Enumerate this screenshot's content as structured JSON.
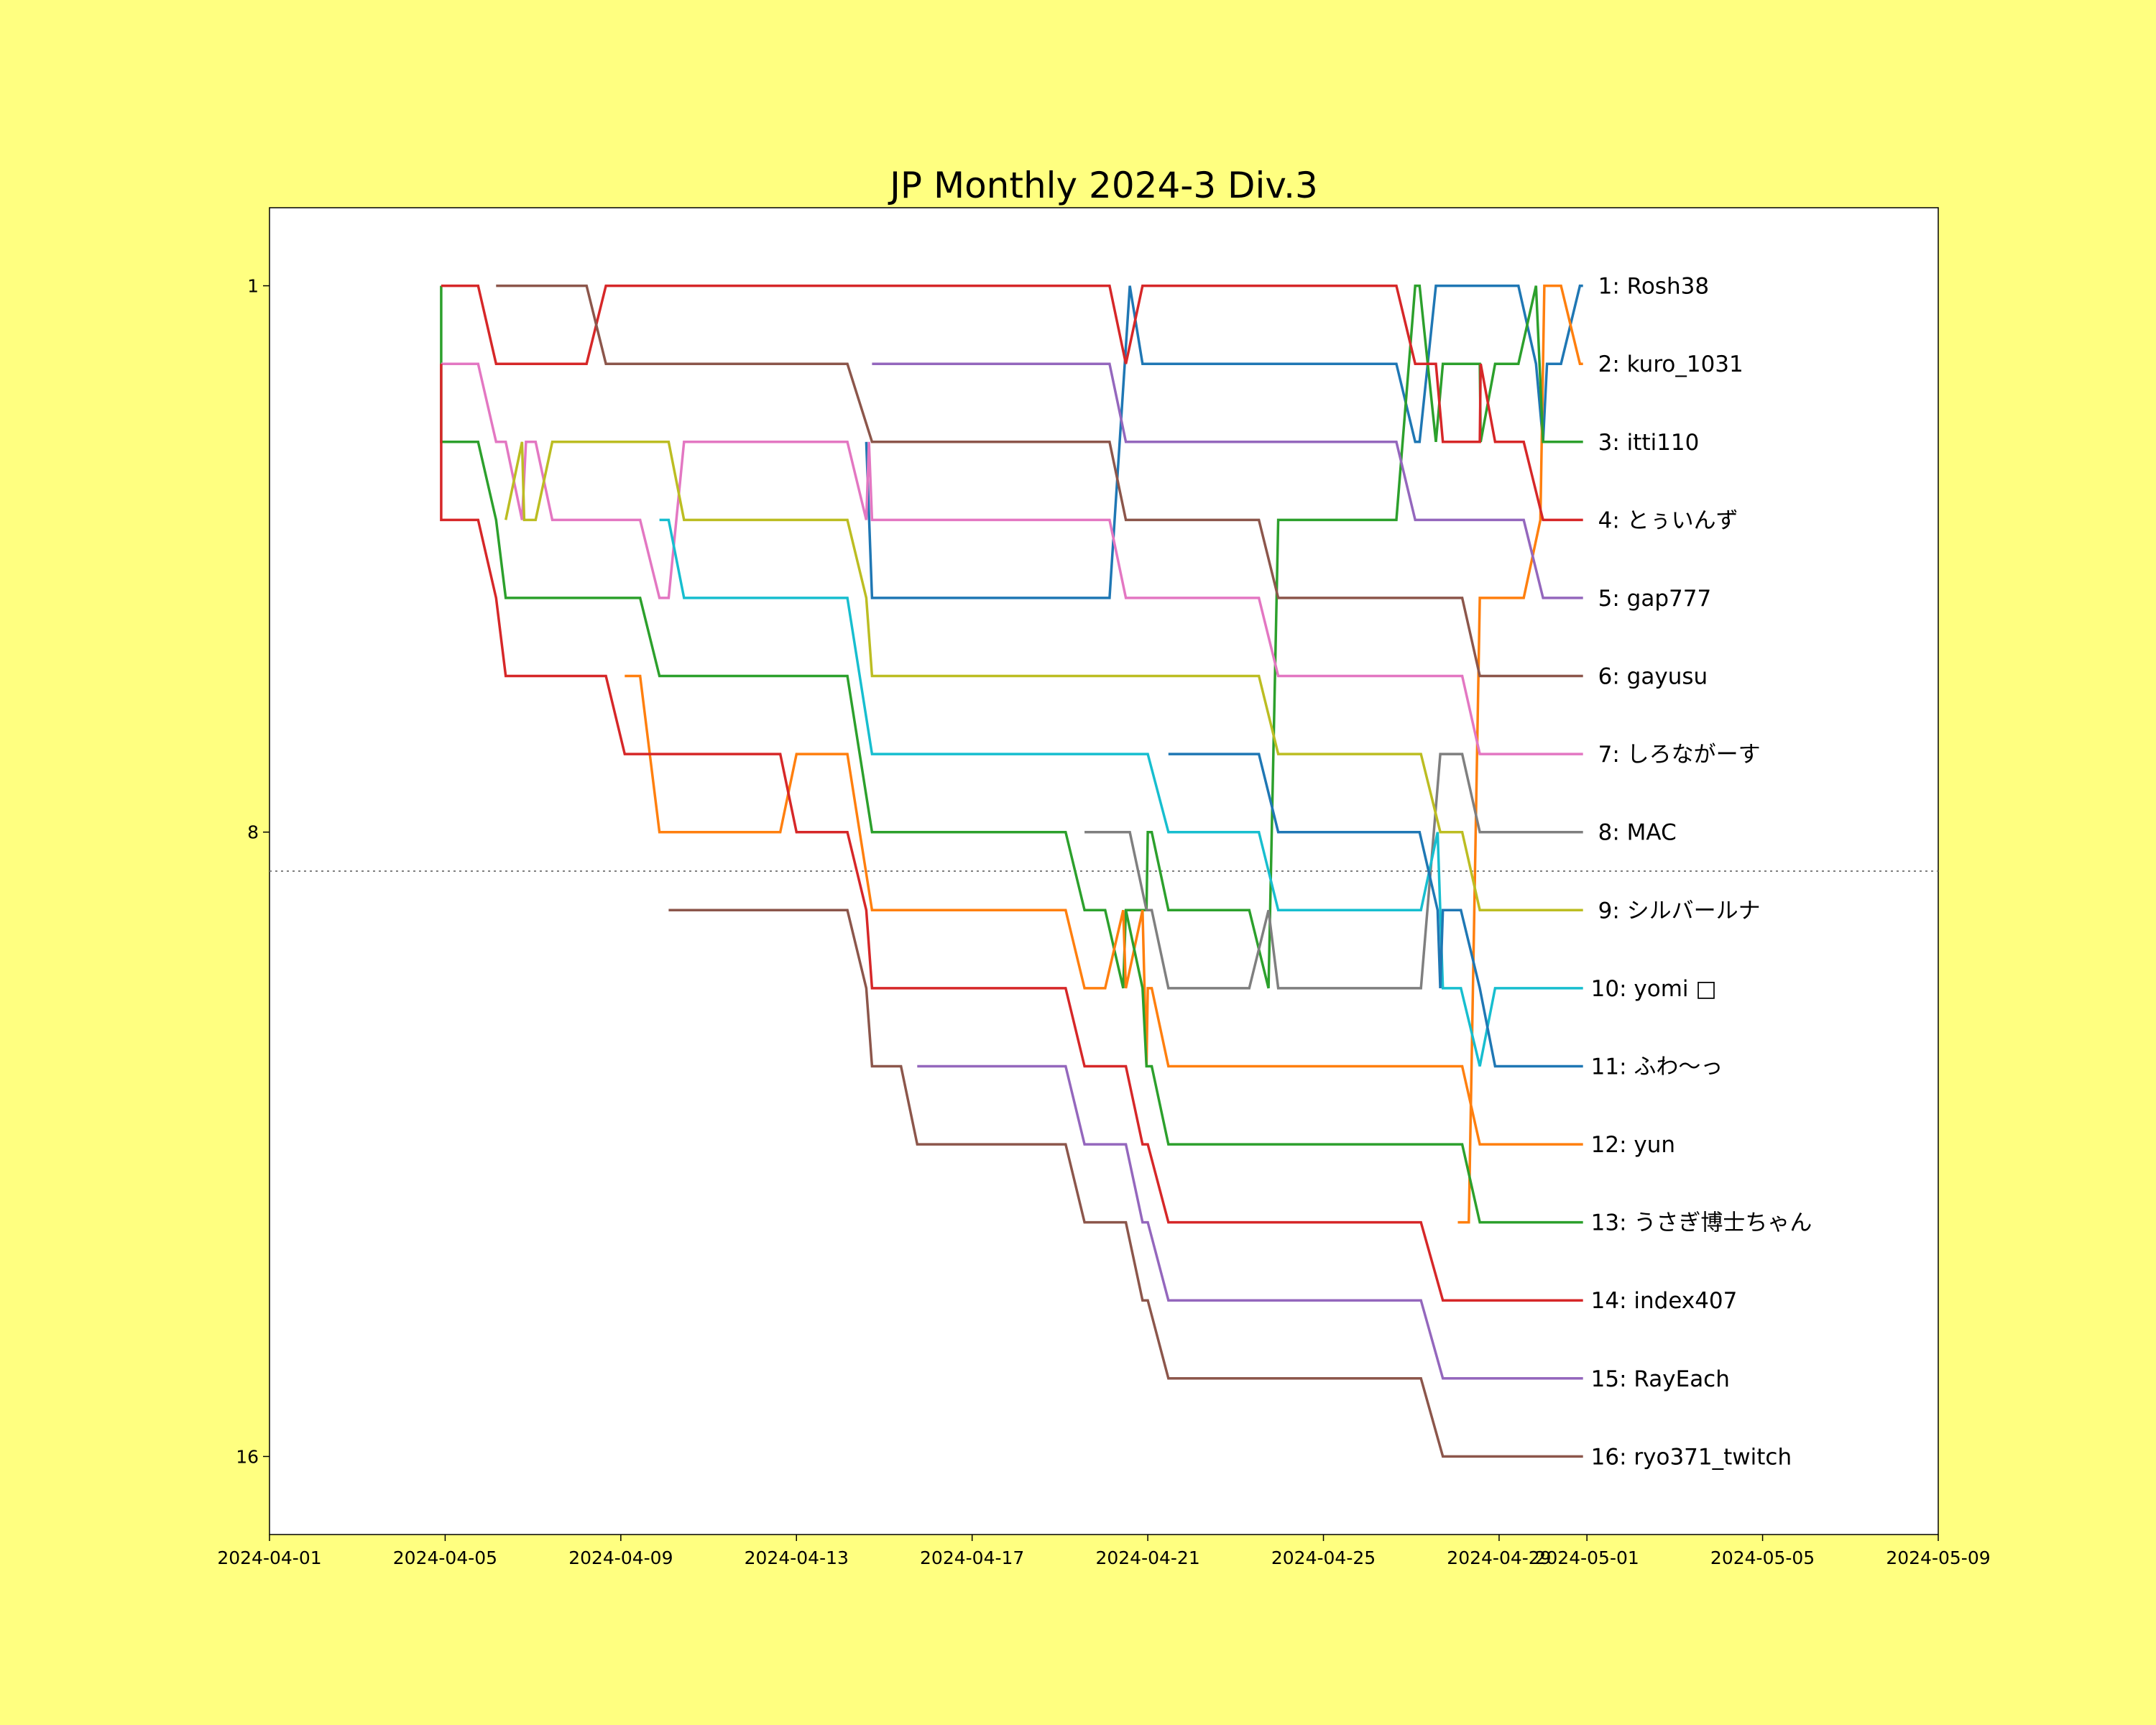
{
  "chart_data": {
    "type": "line",
    "title": "JP Monthly 2024-3 Div.3",
    "xlabel": "",
    "ylabel": "",
    "x_unit": "days since 2024-04-01",
    "xlim": [
      0,
      38
    ],
    "ylim": [
      17,
      0
    ],
    "grid": false,
    "x_ticks": [
      {
        "value": 0,
        "label": "2024-04-01"
      },
      {
        "value": 4,
        "label": "2024-04-05"
      },
      {
        "value": 8,
        "label": "2024-04-09"
      },
      {
        "value": 12,
        "label": "2024-04-13"
      },
      {
        "value": 16,
        "label": "2024-04-17"
      },
      {
        "value": 20,
        "label": "2024-04-21"
      },
      {
        "value": 24,
        "label": "2024-04-25"
      },
      {
        "value": 28,
        "label": "2024-04-29"
      },
      {
        "value": 30,
        "label": "2024-05-01"
      },
      {
        "value": 34,
        "label": "2024-05-05"
      },
      {
        "value": 38,
        "label": "2024-05-09"
      }
    ],
    "y_ticks": [
      {
        "value": 1,
        "label": "1"
      },
      {
        "value": 8,
        "label": "8"
      },
      {
        "value": 16,
        "label": "16"
      }
    ],
    "cutoff_line": {
      "rank": 8.5,
      "style": "dotted",
      "color": "#808080"
    },
    "legend_placement": "right-end-labels",
    "series": [
      {
        "name": "1: Rosh38",
        "color": "#1f77b4",
        "points": [
          [
            13.59,
            3
          ],
          [
            13.72,
            5
          ],
          [
            19.13,
            5
          ],
          [
            19.59,
            1
          ],
          [
            19.88,
            2
          ],
          [
            25.66,
            2
          ],
          [
            26.09,
            3
          ],
          [
            26.19,
            3
          ],
          [
            26.56,
            1
          ],
          [
            28.44,
            1
          ],
          [
            28.84,
            2
          ],
          [
            29.0,
            3
          ],
          [
            29.09,
            2
          ],
          [
            29.41,
            2
          ],
          [
            29.84,
            1
          ],
          [
            29.91,
            1
          ]
        ]
      },
      {
        "name": "2: kuro_1031",
        "color": "#ff7f0e",
        "points": [
          [
            27.06,
            13
          ],
          [
            27.31,
            13
          ],
          [
            27.56,
            5
          ],
          [
            28.56,
            5
          ],
          [
            28.94,
            4
          ],
          [
            29.03,
            1
          ],
          [
            29.41,
            1
          ],
          [
            29.84,
            2
          ],
          [
            29.91,
            2
          ]
        ]
      },
      {
        "name": "3: itti110",
        "color": "#2ca02c",
        "points": [
          [
            3.91,
            1
          ],
          [
            3.91,
            3
          ],
          [
            4.75,
            3
          ],
          [
            5.16,
            4
          ],
          [
            5.38,
            5
          ],
          [
            8.44,
            5
          ],
          [
            8.88,
            6
          ],
          [
            13.16,
            6
          ],
          [
            13.72,
            8
          ],
          [
            18.13,
            8
          ],
          [
            18.56,
            9
          ],
          [
            19.03,
            9
          ],
          [
            19.44,
            10
          ],
          [
            19.5,
            9
          ],
          [
            19.97,
            9
          ],
          [
            20.0,
            8
          ],
          [
            20.09,
            8
          ],
          [
            20.47,
            9
          ],
          [
            22.31,
            9
          ],
          [
            22.75,
            10
          ],
          [
            22.97,
            4
          ],
          [
            25.66,
            4
          ],
          [
            26.09,
            1
          ],
          [
            26.19,
            1
          ],
          [
            26.56,
            3
          ],
          [
            26.72,
            2
          ],
          [
            27.56,
            2
          ],
          [
            27.58,
            3
          ],
          [
            27.91,
            2
          ],
          [
            28.44,
            2
          ],
          [
            28.84,
            1
          ],
          [
            29.0,
            3
          ],
          [
            29.91,
            3
          ]
        ]
      },
      {
        "name": "4: とぅいんず",
        "color": "#d62728",
        "points": [
          [
            3.91,
            1
          ],
          [
            4.75,
            1
          ],
          [
            5.16,
            2
          ],
          [
            7.22,
            2
          ],
          [
            7.66,
            1
          ],
          [
            19.13,
            1
          ],
          [
            19.5,
            2
          ],
          [
            19.88,
            1
          ],
          [
            25.66,
            1
          ],
          [
            26.09,
            2
          ],
          [
            26.56,
            2
          ],
          [
            26.72,
            3
          ],
          [
            27.56,
            3
          ],
          [
            27.58,
            2
          ],
          [
            27.91,
            3
          ],
          [
            28.56,
            3
          ],
          [
            29.0,
            4
          ],
          [
            29.91,
            4
          ]
        ]
      },
      {
        "name": "5: gap777",
        "color": "#9467bd",
        "points": [
          [
            13.72,
            2
          ],
          [
            19.13,
            2
          ],
          [
            19.5,
            3
          ],
          [
            25.66,
            3
          ],
          [
            26.09,
            4
          ],
          [
            28.56,
            4
          ],
          [
            29.0,
            5
          ],
          [
            29.91,
            5
          ]
        ]
      },
      {
        "name": "6: gayusu",
        "color": "#8c564b",
        "points": [
          [
            5.16,
            1
          ],
          [
            7.22,
            1
          ],
          [
            7.66,
            2
          ],
          [
            13.16,
            2
          ],
          [
            13.72,
            3
          ],
          [
            19.13,
            3
          ],
          [
            19.5,
            4
          ],
          [
            22.53,
            4
          ],
          [
            22.97,
            5
          ],
          [
            27.16,
            5
          ],
          [
            27.56,
            6
          ],
          [
            29.91,
            6
          ]
        ]
      },
      {
        "name": "7: しろながーす",
        "color": "#e377c2",
        "points": [
          [
            3.91,
            2
          ],
          [
            4.75,
            2
          ],
          [
            5.16,
            3
          ],
          [
            5.38,
            3
          ],
          [
            5.75,
            4
          ],
          [
            5.84,
            3
          ],
          [
            6.06,
            3
          ],
          [
            6.44,
            4
          ],
          [
            8.44,
            4
          ],
          [
            8.88,
            5
          ],
          [
            9.09,
            5
          ],
          [
            9.44,
            3
          ],
          [
            13.16,
            3
          ],
          [
            13.59,
            4
          ],
          [
            13.65,
            3
          ],
          [
            13.72,
            4
          ],
          [
            19.13,
            4
          ],
          [
            19.5,
            5
          ],
          [
            22.53,
            5
          ],
          [
            22.97,
            6
          ],
          [
            27.16,
            6
          ],
          [
            27.56,
            7
          ],
          [
            29.91,
            7
          ]
        ]
      },
      {
        "name": "8: MAC",
        "color": "#7f7f7f",
        "points": [
          [
            18.56,
            8
          ],
          [
            19.59,
            8
          ],
          [
            19.97,
            9
          ],
          [
            20.09,
            9
          ],
          [
            20.47,
            10
          ],
          [
            22.31,
            10
          ],
          [
            22.75,
            9
          ],
          [
            22.97,
            10
          ],
          [
            26.22,
            10
          ],
          [
            26.66,
            7
          ],
          [
            27.16,
            7
          ],
          [
            27.56,
            8
          ],
          [
            29.91,
            8
          ]
        ]
      },
      {
        "name": "9: シルバールナ",
        "color": "#bcbd22",
        "points": [
          [
            5.38,
            4
          ],
          [
            5.75,
            3
          ],
          [
            5.8,
            4
          ],
          [
            6.06,
            4
          ],
          [
            6.44,
            3
          ],
          [
            9.09,
            3
          ],
          [
            9.44,
            4
          ],
          [
            13.16,
            4
          ],
          [
            13.59,
            5
          ],
          [
            13.72,
            6
          ],
          [
            22.53,
            6
          ],
          [
            22.97,
            7
          ],
          [
            26.22,
            7
          ],
          [
            26.66,
            8
          ],
          [
            27.16,
            8
          ],
          [
            27.56,
            9
          ],
          [
            29.91,
            9
          ]
        ]
      },
      {
        "name": "10: yomi □",
        "color": "#17becf",
        "points": [
          [
            8.88,
            4
          ],
          [
            9.09,
            4
          ],
          [
            9.44,
            5
          ],
          [
            13.16,
            5
          ],
          [
            13.72,
            7
          ],
          [
            20.0,
            7
          ],
          [
            20.47,
            8
          ],
          [
            22.53,
            8
          ],
          [
            22.97,
            9
          ],
          [
            26.22,
            9
          ],
          [
            26.6,
            8
          ],
          [
            26.72,
            10
          ],
          [
            27.13,
            10
          ],
          [
            27.56,
            11
          ],
          [
            27.91,
            10
          ],
          [
            29.91,
            10
          ]
        ]
      },
      {
        "name": "11: ふわ〜っ",
        "color": "#1f77b4",
        "points": [
          [
            20.47,
            7
          ],
          [
            22.53,
            7
          ],
          [
            22.97,
            8
          ],
          [
            26.19,
            8
          ],
          [
            26.6,
            9
          ],
          [
            26.66,
            10
          ],
          [
            26.72,
            9
          ],
          [
            27.13,
            9
          ],
          [
            27.56,
            10
          ],
          [
            27.91,
            11
          ],
          [
            29.91,
            11
          ]
        ]
      },
      {
        "name": "12: yun",
        "color": "#ff7f0e",
        "points": [
          [
            8.09,
            6
          ],
          [
            8.44,
            6
          ],
          [
            8.88,
            8
          ],
          [
            11.63,
            8
          ],
          [
            12.0,
            7
          ],
          [
            13.16,
            7
          ],
          [
            13.72,
            9
          ],
          [
            18.13,
            9
          ],
          [
            18.56,
            10
          ],
          [
            19.03,
            10
          ],
          [
            19.44,
            9
          ],
          [
            19.5,
            10
          ],
          [
            19.88,
            9
          ],
          [
            19.97,
            11
          ],
          [
            20.0,
            10
          ],
          [
            20.09,
            10
          ],
          [
            20.47,
            11
          ],
          [
            27.16,
            11
          ],
          [
            27.56,
            12
          ],
          [
            29.91,
            12
          ]
        ]
      },
      {
        "name": "13: うさぎ博士ちゃん",
        "color": "#2ca02c",
        "points": [
          [
            19.5,
            9
          ],
          [
            19.88,
            10
          ],
          [
            19.97,
            11
          ],
          [
            20.09,
            11
          ],
          [
            20.47,
            12
          ],
          [
            27.16,
            12
          ],
          [
            27.56,
            13
          ],
          [
            29.91,
            13
          ]
        ]
      },
      {
        "name": "14: index407",
        "color": "#d62728",
        "points": [
          [
            3.91,
            2
          ],
          [
            3.91,
            4
          ],
          [
            4.75,
            4
          ],
          [
            5.16,
            5
          ],
          [
            5.38,
            6
          ],
          [
            7.66,
            6
          ],
          [
            8.09,
            7
          ],
          [
            11.63,
            7
          ],
          [
            12.0,
            8
          ],
          [
            13.16,
            8
          ],
          [
            13.59,
            9
          ],
          [
            13.72,
            10
          ],
          [
            18.13,
            10
          ],
          [
            18.56,
            11
          ],
          [
            19.5,
            11
          ],
          [
            19.88,
            12
          ],
          [
            20.0,
            12
          ],
          [
            20.47,
            13
          ],
          [
            26.22,
            13
          ],
          [
            26.72,
            14
          ],
          [
            29.91,
            14
          ]
        ]
      },
      {
        "name": "15: RayEach",
        "color": "#9467bd",
        "points": [
          [
            14.75,
            11
          ],
          [
            18.13,
            11
          ],
          [
            18.56,
            12
          ],
          [
            19.5,
            12
          ],
          [
            19.88,
            13
          ],
          [
            20.0,
            13
          ],
          [
            20.47,
            14
          ],
          [
            26.22,
            14
          ],
          [
            26.72,
            15
          ],
          [
            29.91,
            15
          ]
        ]
      },
      {
        "name": "16: ryo371_twitch",
        "color": "#8c564b",
        "points": [
          [
            9.09,
            9
          ],
          [
            13.16,
            9
          ],
          [
            13.59,
            10
          ],
          [
            13.72,
            11
          ],
          [
            14.38,
            11
          ],
          [
            14.75,
            12
          ],
          [
            18.13,
            12
          ],
          [
            18.56,
            13
          ],
          [
            19.5,
            13
          ],
          [
            19.88,
            14
          ],
          [
            20.0,
            14
          ],
          [
            20.47,
            15
          ],
          [
            26.22,
            15
          ],
          [
            26.72,
            16
          ],
          [
            29.91,
            16
          ]
        ]
      }
    ]
  }
}
